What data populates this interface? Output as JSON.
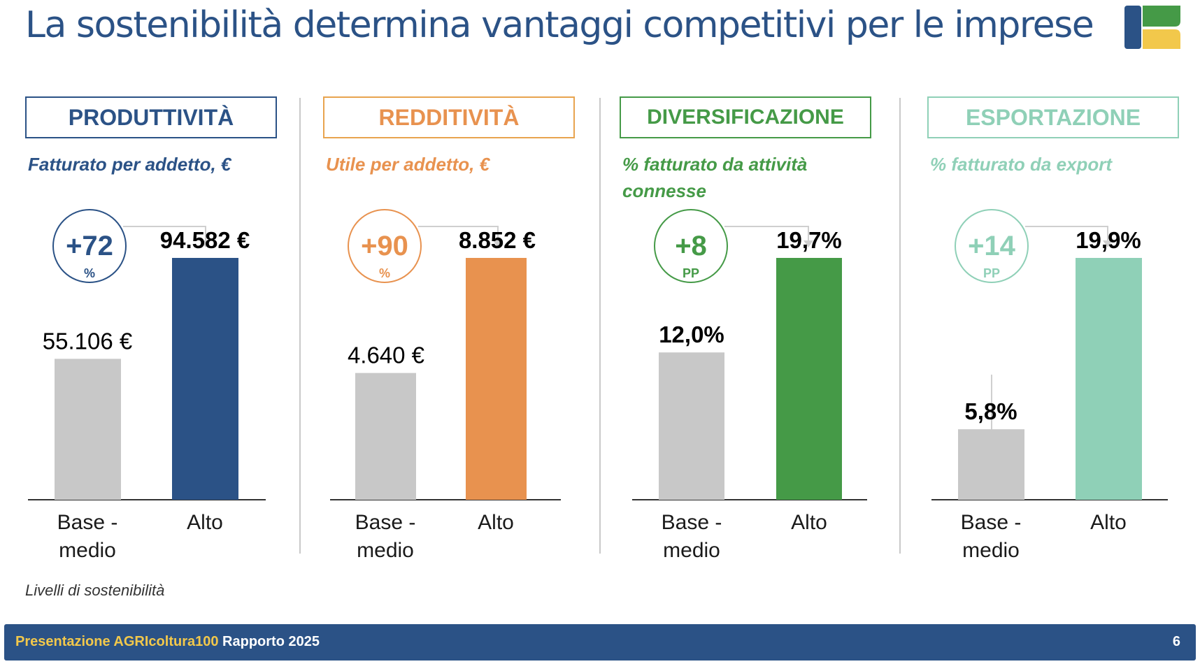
{
  "slide": {
    "title": "La sostenibilità determina vantaggi competitivi per le imprese",
    "note": "Livelli di sostenibilità",
    "footer_left_prefix": "Presentazione AGRIcoltura100",
    "footer_left_suffix": "Rapporto 2025",
    "page_number": "6"
  },
  "colors": {
    "base": "#c8c8c8",
    "produttivita": "#2b5286",
    "redditivita": "#e8924f",
    "diversificazione": "#459a47",
    "esportazione": "#8fd0b7",
    "footer_bg": "#2b5286"
  },
  "chart_data": [
    {
      "type": "bar",
      "header": "PRODUTTIVITÀ",
      "title": "Fatturato per addetto, €",
      "categories": [
        "Base - medio",
        "Alto"
      ],
      "values": [
        55106,
        94582
      ],
      "value_labels": [
        "55.106 €",
        "94.582 €"
      ],
      "increase_value": "+72",
      "increase_unit": "%",
      "color": "#2b5286"
    },
    {
      "type": "bar",
      "header": "REDDITIVITÀ",
      "title": "Utile per addetto, €",
      "categories": [
        "Base - medio",
        "Alto"
      ],
      "values": [
        4640,
        8852
      ],
      "value_labels": [
        "4.640 €",
        "8.852 €"
      ],
      "increase_value": "+90",
      "increase_unit": "%",
      "color": "#e8924f"
    },
    {
      "type": "bar",
      "header": "DIVERSIFICAZIONE",
      "title": "% fatturato da attività connesse",
      "categories": [
        "Base - medio",
        "Alto"
      ],
      "values": [
        12.0,
        19.7
      ],
      "value_labels": [
        "12,0%",
        "19,7%"
      ],
      "increase_value": "+8",
      "increase_unit": "PP",
      "color": "#459a47"
    },
    {
      "type": "bar",
      "header": "ESPORTAZIONE",
      "title": "% fatturato da export",
      "categories": [
        "Base - medio",
        "Alto"
      ],
      "values": [
        5.8,
        19.9
      ],
      "value_labels": [
        "5,8%",
        "19,9%"
      ],
      "increase_value": "+14",
      "increase_unit": "PP",
      "color": "#8fd0b7"
    }
  ]
}
